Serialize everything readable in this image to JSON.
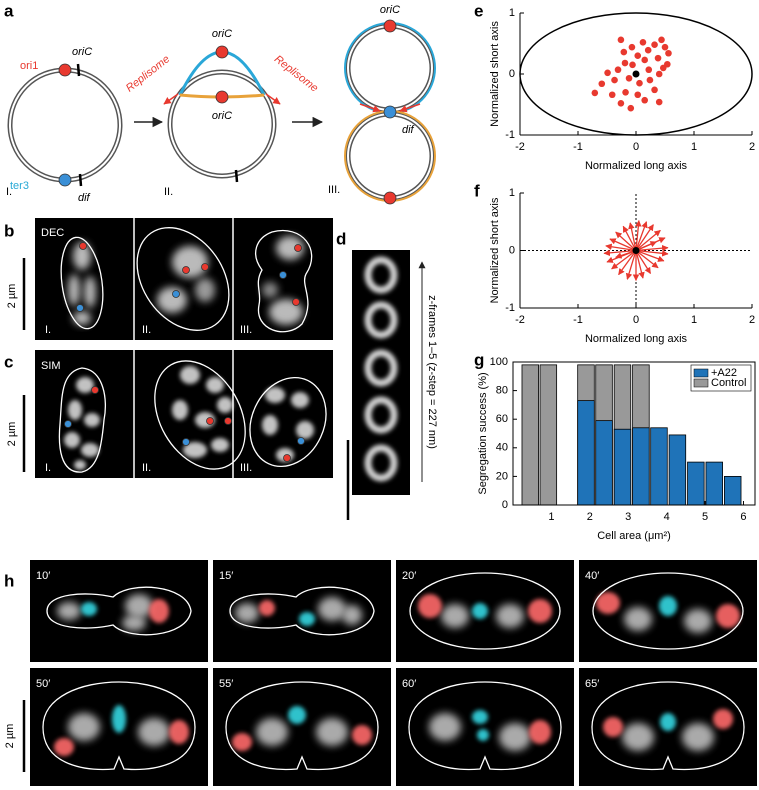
{
  "panel_a": {
    "label": "a",
    "ori1": "ori1",
    "oriC": "oriC",
    "ter3": "ter3",
    "dif": "dif",
    "replisome": "Replisome",
    "stages": [
      "I.",
      "II.",
      "III."
    ]
  },
  "panel_b": {
    "label": "b",
    "method": "DEC",
    "scale_bar": "2 µm",
    "stages": [
      "I.",
      "II.",
      "III."
    ]
  },
  "panel_c": {
    "label": "c",
    "method": "SIM",
    "scale_bar": "2 µm",
    "stages": [
      "I.",
      "II.",
      "III."
    ]
  },
  "panel_d": {
    "label": "d",
    "caption": "z-frames 1–5 (z-step = 227 nm)"
  },
  "panel_h": {
    "label": "h",
    "times": [
      "10′",
      "15′",
      "20′",
      "40′",
      "50′",
      "55′",
      "60′",
      "65′"
    ],
    "scale_bar": "2 µm"
  },
  "chart_data": [
    {
      "label": "e",
      "type": "scatter",
      "color": "#e8392f",
      "xlabel": "Normalized long axis",
      "ylabel": "Normalized short axis",
      "x": [
        -0.26,
        -0.07,
        -0.21,
        0.03,
        0.12,
        0.21,
        0.32,
        0.44,
        0.5,
        0.56,
        0.38,
        0.15,
        -0.06,
        -0.19,
        -0.31,
        -0.49,
        -0.37,
        -0.12,
        0.06,
        0.24,
        0.4,
        0.47,
        0.54,
        0.32,
        0.03,
        -0.18,
        -0.41,
        -0.59,
        -0.26,
        0.15,
        0.4,
        -0.09,
        -0.71,
        0.22
      ],
      "values": [
        0.56,
        0.44,
        0.36,
        0.3,
        0.52,
        0.39,
        0.48,
        0.56,
        0.44,
        0.34,
        0.26,
        0.23,
        0.15,
        0.18,
        0.07,
        0.02,
        -0.1,
        -0.07,
        -0.15,
        -0.1,
        0.0,
        0.1,
        0.16,
        -0.26,
        -0.34,
        -0.3,
        -0.34,
        -0.16,
        -0.48,
        -0.43,
        -0.46,
        -0.56,
        -0.31,
        0.07
      ],
      "xlim": [
        -2,
        2
      ],
      "ylim": [
        -1,
        1
      ],
      "xticks": [
        -2,
        -1,
        0,
        1,
        2
      ],
      "yticks": [
        -1,
        0,
        1
      ]
    },
    {
      "label": "f",
      "type": "arrows",
      "color": "#e8392f",
      "xlabel": "Normalized long axis",
      "ylabel": "Normalized short axis",
      "x": [
        0.55,
        0.5,
        0.42,
        0.3,
        0.18,
        0.05,
        -0.1,
        -0.22,
        -0.35,
        -0.45,
        -0.52,
        -0.55,
        -0.5,
        -0.42,
        -0.3,
        -0.15,
        0.0,
        0.12,
        0.25,
        0.38,
        0.48,
        0.55,
        0.35,
        -0.35
      ],
      "values": [
        0.05,
        0.22,
        0.35,
        0.45,
        0.5,
        0.52,
        0.48,
        0.42,
        0.32,
        0.2,
        0.08,
        -0.05,
        -0.2,
        -0.32,
        -0.42,
        -0.5,
        -0.52,
        -0.48,
        -0.4,
        -0.3,
        -0.18,
        -0.06,
        0.15,
        -0.12
      ],
      "xlim": [
        -2,
        2
      ],
      "ylim": [
        -1,
        1
      ],
      "xticks": [
        -2,
        -1,
        0,
        1,
        2
      ],
      "yticks": [
        -1,
        0,
        1
      ]
    },
    {
      "label": "g",
      "type": "bar",
      "xlabel": "Cell area (μm²)",
      "ylabel": "Segregation success (%)",
      "x": [
        0.45,
        0.92,
        1.9,
        2.37,
        2.85,
        3.33,
        3.8,
        4.28,
        4.76,
        5.24,
        5.72
      ],
      "series": [
        {
          "name": "+A22",
          "color": "#1f73b8",
          "values": [
            null,
            null,
            73,
            59,
            53,
            54,
            54,
            49,
            30,
            30,
            20
          ]
        },
        {
          "name": "Control",
          "color": "#999999",
          "values": [
            98,
            98,
            98,
            98,
            98,
            98,
            null,
            null,
            null,
            null,
            null
          ]
        }
      ],
      "xlim": [
        0,
        6.3
      ],
      "ylim": [
        0,
        100
      ],
      "xticks": [
        1,
        2,
        3,
        4,
        5,
        6
      ],
      "yticks": [
        0,
        20,
        40,
        60,
        80,
        100
      ],
      "legend": "upper right"
    }
  ]
}
